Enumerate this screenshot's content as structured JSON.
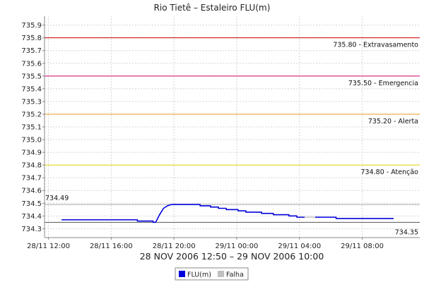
{
  "chart_data": {
    "type": "line",
    "title": "Rio Tietê – Estaleiro FLU(m)",
    "subtitle": "28 NOV 2006 12:50 – 29 NOV 2006 10:00",
    "ylim": [
      734.23,
      735.97
    ],
    "xlim": [
      "2006-11-28T11:45",
      "2006-11-29T11:40"
    ],
    "grid": true,
    "y_ticks": [
      "734.3",
      "734.4",
      "734.5",
      "734.6",
      "734.7",
      "734.8",
      "734.9",
      "735.0",
      "735.1",
      "735.2",
      "735.3",
      "735.4",
      "735.5",
      "735.6",
      "735.7",
      "735.8",
      "735.9"
    ],
    "x_ticks": [
      {
        "t": "2006-11-28T12:00",
        "label": "28/11 12:00"
      },
      {
        "t": "2006-11-28T16:00",
        "label": "28/11 16:00"
      },
      {
        "t": "2006-11-28T20:00",
        "label": "28/11 20:00"
      },
      {
        "t": "2006-11-29T00:00",
        "label": "29/11 00:00"
      },
      {
        "t": "2006-11-29T04:00",
        "label": "29/11 04:00"
      },
      {
        "t": "2006-11-29T08:00",
        "label": "29/11 08:00"
      }
    ],
    "reference_lines": [
      {
        "value": 735.8,
        "label": "735.80 - Extravasamento",
        "color": "#cc0000"
      },
      {
        "value": 735.5,
        "label": "735.50 - Emergencia",
        "color": "#cc0066"
      },
      {
        "value": 735.2,
        "label": "735.20 - Alerta",
        "color": "#e89a1a"
      },
      {
        "value": 734.8,
        "label": "734.80 - Atenção",
        "color": "#e6d400"
      },
      {
        "value": 734.49,
        "label": "734.49",
        "color": "#aaaaaa",
        "label_side": "left"
      },
      {
        "value": 734.35,
        "label": "734.35",
        "color": "#555555",
        "label_side": "right-below"
      }
    ],
    "series": [
      {
        "name": "FLU(m)",
        "color": "#0000dd",
        "points": [
          [
            "2006-11-28T12:50",
            734.37
          ],
          [
            "2006-11-28T17:40",
            734.37
          ],
          [
            "2006-11-28T17:40",
            734.36
          ],
          [
            "2006-11-28T18:40",
            734.36
          ],
          [
            "2006-11-28T18:40",
            734.35
          ],
          [
            "2006-11-28T18:50",
            734.35
          ],
          [
            "2006-11-28T19:05",
            734.41
          ],
          [
            "2006-11-28T19:20",
            734.46
          ],
          [
            "2006-11-28T19:35",
            734.48
          ],
          [
            "2006-11-28T19:50",
            734.49
          ],
          [
            "2006-11-28T21:40",
            734.49
          ],
          [
            "2006-11-28T21:40",
            734.48
          ],
          [
            "2006-11-28T22:20",
            734.48
          ],
          [
            "2006-11-28T22:20",
            734.47
          ],
          [
            "2006-11-28T22:50",
            734.47
          ],
          [
            "2006-11-28T22:50",
            734.46
          ],
          [
            "2006-11-28T23:20",
            734.46
          ],
          [
            "2006-11-28T23:20",
            734.45
          ],
          [
            "2006-11-29T00:05",
            734.45
          ],
          [
            "2006-11-29T00:05",
            734.44
          ],
          [
            "2006-11-29T00:35",
            734.44
          ],
          [
            "2006-11-29T00:35",
            734.43
          ],
          [
            "2006-11-29T01:35",
            734.43
          ],
          [
            "2006-11-29T01:35",
            734.42
          ],
          [
            "2006-11-29T02:20",
            734.42
          ],
          [
            "2006-11-29T02:20",
            734.41
          ],
          [
            "2006-11-29T03:20",
            734.41
          ],
          [
            "2006-11-29T03:20",
            734.4
          ],
          [
            "2006-11-29T03:50",
            734.4
          ],
          [
            "2006-11-29T03:50",
            734.39
          ],
          [
            "2006-11-29T04:20",
            734.39
          ]
        ]
      },
      {
        "name": "FLU(m)",
        "color": "#0000dd",
        "points": [
          [
            "2006-11-29T05:00",
            734.39
          ],
          [
            "2006-11-29T06:20",
            734.39
          ],
          [
            "2006-11-29T06:20",
            734.38
          ],
          [
            "2006-11-29T10:00",
            734.38
          ]
        ]
      },
      {
        "name": "Falha",
        "color": "#c8c8c8",
        "points": [
          [
            "2006-11-29T04:20",
            734.39
          ],
          [
            "2006-11-29T05:00",
            734.39
          ]
        ]
      }
    ],
    "legend": {
      "placement": "bottom-center",
      "items": [
        {
          "label": "FLU(m)",
          "color": "#0000dd"
        },
        {
          "label": "Falha",
          "color": "#c0c0c0"
        }
      ]
    }
  }
}
